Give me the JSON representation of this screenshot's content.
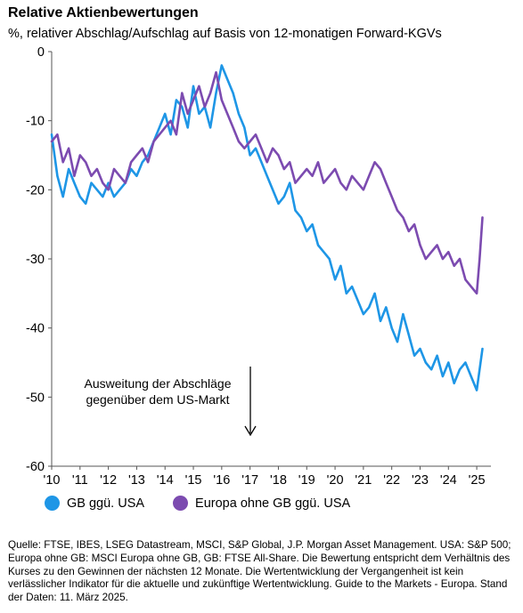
{
  "header": {
    "title": "Relative Aktienbewertungen",
    "subtitle": "%, relativer Abschlag/Aufschlag auf Basis von 12-monatigen Forward-KGVs"
  },
  "annotation": {
    "line1": "Ausweitung der Abschläge",
    "line2": "gegenüber dem US-Markt"
  },
  "footnote": "Quelle: FTSE, IBES, LSEG Datastream, MSCI, S&P Global, J.P. Morgan Asset Management. USA: S&P 500; Europa ohne GB: MSCI Europa ohne GB, GB: FTSE All-Share. Die Bewertung entspricht dem Verhältnis des Kurses zu den Gewinnen der nächsten 12 Monate. Die Wertentwicklung der Vergangenheit ist kein verlässlicher Indikator für die aktuelle und zukünftige Wertentwicklung. Guide to the Markets - Europa. Stand der Daten: 11. März 2025.",
  "chart_data": {
    "type": "line",
    "title": "Relative Aktienbewertungen",
    "subtitle": "%, relativer Abschlag/Aufschlag auf Basis von 12-monatigen Forward-KGVs",
    "ylim": [
      -60,
      0
    ],
    "yticks": [
      0,
      -10,
      -20,
      -30,
      -40,
      -50,
      -60
    ],
    "xlim": [
      2010,
      2025.5
    ],
    "xticks": [
      "'10",
      "'11",
      "'12",
      "'13",
      "'14",
      "'15",
      "'16",
      "'17",
      "'18",
      "'19",
      "'20",
      "'21",
      "'22",
      "'23",
      "'24",
      "'25"
    ],
    "grid": false,
    "legend": "bottom",
    "series": [
      {
        "name": "GB ggü. USA",
        "color": "#1e96e6",
        "x": [
          2010.0,
          2010.2,
          2010.4,
          2010.6,
          2010.8,
          2011.0,
          2011.2,
          2011.4,
          2011.6,
          2011.8,
          2012.0,
          2012.2,
          2012.4,
          2012.6,
          2012.8,
          2013.0,
          2013.2,
          2013.4,
          2013.6,
          2013.8,
          2014.0,
          2014.2,
          2014.4,
          2014.6,
          2014.8,
          2015.0,
          2015.2,
          2015.4,
          2015.6,
          2015.8,
          2016.0,
          2016.2,
          2016.4,
          2016.6,
          2016.8,
          2017.0,
          2017.2,
          2017.4,
          2017.6,
          2017.8,
          2018.0,
          2018.2,
          2018.4,
          2018.6,
          2018.8,
          2019.0,
          2019.2,
          2019.4,
          2019.6,
          2019.8,
          2020.0,
          2020.2,
          2020.4,
          2020.6,
          2020.8,
          2021.0,
          2021.2,
          2021.4,
          2021.6,
          2021.8,
          2022.0,
          2022.2,
          2022.4,
          2022.6,
          2022.8,
          2023.0,
          2023.2,
          2023.4,
          2023.6,
          2023.8,
          2024.0,
          2024.2,
          2024.4,
          2024.6,
          2024.8,
          2025.0,
          2025.1,
          2025.2
        ],
        "values": [
          -12,
          -18,
          -21,
          -17,
          -19,
          -21,
          -22,
          -19,
          -20,
          -21,
          -19,
          -21,
          -20,
          -19,
          -17,
          -18,
          -16,
          -15,
          -13,
          -11,
          -9,
          -12,
          -7,
          -8,
          -11,
          -5,
          -9,
          -8,
          -11,
          -6,
          -2,
          -4,
          -6,
          -9,
          -11,
          -15,
          -14,
          -16,
          -18,
          -20,
          -22,
          -21,
          -19,
          -23,
          -24,
          -26,
          -25,
          -28,
          -29,
          -30,
          -33,
          -31,
          -35,
          -34,
          -36,
          -38,
          -37,
          -35,
          -39,
          -37,
          -40,
          -42,
          -38,
          -41,
          -44,
          -43,
          -45,
          -46,
          -44,
          -47,
          -45,
          -48,
          -46,
          -45,
          -47,
          -49,
          -46,
          -43
        ]
      },
      {
        "name": "Europa ohne GB ggü. USA",
        "color": "#7c4bb0",
        "x": [
          2010.0,
          2010.2,
          2010.4,
          2010.6,
          2010.8,
          2011.0,
          2011.2,
          2011.4,
          2011.6,
          2011.8,
          2012.0,
          2012.2,
          2012.4,
          2012.6,
          2012.8,
          2013.0,
          2013.2,
          2013.4,
          2013.6,
          2013.8,
          2014.0,
          2014.2,
          2014.4,
          2014.6,
          2014.8,
          2015.0,
          2015.2,
          2015.4,
          2015.6,
          2015.8,
          2016.0,
          2016.2,
          2016.4,
          2016.6,
          2016.8,
          2017.0,
          2017.2,
          2017.4,
          2017.6,
          2017.8,
          2018.0,
          2018.2,
          2018.4,
          2018.6,
          2018.8,
          2019.0,
          2019.2,
          2019.4,
          2019.6,
          2019.8,
          2020.0,
          2020.2,
          2020.4,
          2020.6,
          2020.8,
          2021.0,
          2021.2,
          2021.4,
          2021.6,
          2021.8,
          2022.0,
          2022.2,
          2022.4,
          2022.6,
          2022.8,
          2023.0,
          2023.2,
          2023.4,
          2023.6,
          2023.8,
          2024.0,
          2024.2,
          2024.4,
          2024.6,
          2024.8,
          2025.0,
          2025.1,
          2025.2
        ],
        "values": [
          -13,
          -12,
          -16,
          -14,
          -18,
          -15,
          -16,
          -18,
          -17,
          -19,
          -20,
          -17,
          -18,
          -19,
          -16,
          -15,
          -14,
          -16,
          -13,
          -12,
          -11,
          -10,
          -12,
          -6,
          -9,
          -7,
          -5,
          -8,
          -6,
          -3,
          -7,
          -9,
          -11,
          -13,
          -14,
          -13,
          -12,
          -14,
          -16,
          -14,
          -15,
          -17,
          -16,
          -19,
          -18,
          -17,
          -18,
          -16,
          -19,
          -18,
          -17,
          -19,
          -20,
          -18,
          -19,
          -20,
          -18,
          -16,
          -17,
          -19,
          -21,
          -23,
          -24,
          -26,
          -25,
          -28,
          -30,
          -29,
          -28,
          -30,
          -29,
          -31,
          -30,
          -33,
          -34,
          -35,
          -30,
          -24
        ]
      }
    ]
  }
}
